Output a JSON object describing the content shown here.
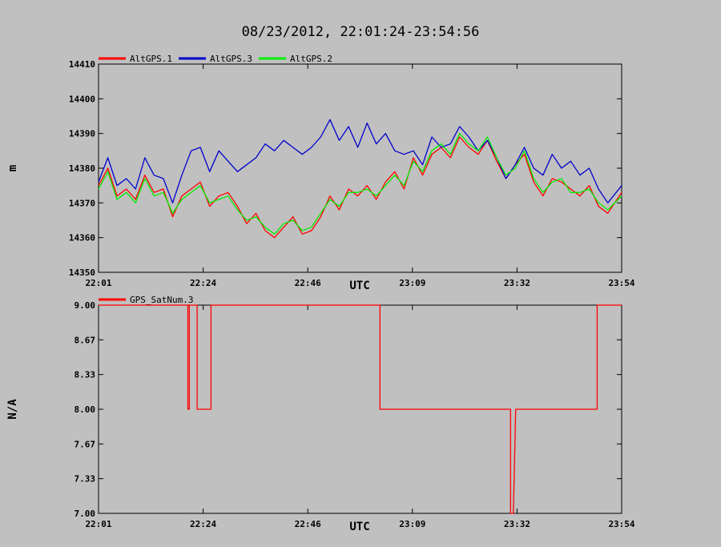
{
  "title": "08/23/2012, 22:01:24-23:54:56",
  "x_axis_label": "UTC",
  "chart_data": [
    {
      "type": "line",
      "ylabel": "m",
      "xlabel": "UTC",
      "ylim": [
        14350,
        14410
      ],
      "y_ticks": [
        "14350",
        "14360",
        "14370",
        "14380",
        "14390",
        "14400",
        "14410"
      ],
      "x_tick_labels": [
        "22:01",
        "22:24",
        "22:46",
        "23:09",
        "23:32",
        "23:54"
      ],
      "xlim_minutes": [
        0,
        113
      ],
      "legend_placement": "top-left",
      "series": [
        {
          "name": "AltGPS.1",
          "color": "#ff0000",
          "x_minutes": [
            0,
            2,
            4,
            6,
            8,
            10,
            12,
            14,
            16,
            18,
            20,
            22,
            24,
            26,
            28,
            30,
            32,
            34,
            36,
            38,
            40,
            42,
            44,
            46,
            48,
            50,
            52,
            54,
            56,
            58,
            60,
            62,
            64,
            66,
            68,
            70,
            72,
            74,
            76,
            78,
            80,
            82,
            84,
            86,
            88,
            90,
            92,
            94,
            96,
            98,
            100,
            102,
            104,
            106,
            108,
            110,
            113
          ],
          "values": [
            14375,
            14380,
            14372,
            14374,
            14371,
            14378,
            14373,
            14374,
            14366,
            14372,
            14374,
            14376,
            14369,
            14372,
            14373,
            14369,
            14364,
            14367,
            14362,
            14360,
            14363,
            14366,
            14361,
            14362,
            14366,
            14372,
            14368,
            14374,
            14372,
            14375,
            14371,
            14376,
            14379,
            14374,
            14383,
            14378,
            14384,
            14386,
            14383,
            14389,
            14386,
            14384,
            14388,
            14382,
            14377,
            14381,
            14384,
            14376,
            14372,
            14377,
            14376,
            14374,
            14372,
            14375,
            14369,
            14367,
            14373
          ]
        },
        {
          "name": "AltGPS.3",
          "color": "#0000cc",
          "x_minutes": [
            0,
            2,
            4,
            6,
            8,
            10,
            12,
            14,
            16,
            18,
            20,
            22,
            24,
            26,
            28,
            30,
            32,
            34,
            36,
            38,
            40,
            42,
            44,
            46,
            48,
            50,
            52,
            54,
            56,
            58,
            60,
            62,
            64,
            66,
            68,
            70,
            72,
            74,
            76,
            78,
            80,
            82,
            84,
            86,
            88,
            90,
            92,
            94,
            96,
            98,
            100,
            102,
            104,
            106,
            108,
            110,
            113
          ],
          "values": [
            14376,
            14383,
            14375,
            14377,
            14374,
            14383,
            14378,
            14377,
            14370,
            14378,
            14385,
            14386,
            14379,
            14385,
            14382,
            14379,
            14381,
            14383,
            14387,
            14385,
            14388,
            14386,
            14384,
            14386,
            14389,
            14394,
            14388,
            14392,
            14386,
            14393,
            14387,
            14390,
            14385,
            14384,
            14385,
            14381,
            14389,
            14386,
            14387,
            14392,
            14389,
            14385,
            14388,
            14383,
            14377,
            14381,
            14386,
            14380,
            14378,
            14384,
            14380,
            14382,
            14378,
            14380,
            14374,
            14370,
            14375
          ]
        },
        {
          "name": "AltGPS.2",
          "color": "#00ee00",
          "x_minutes": [
            0,
            2,
            4,
            6,
            8,
            10,
            12,
            14,
            16,
            18,
            20,
            22,
            24,
            26,
            28,
            30,
            32,
            34,
            36,
            38,
            40,
            42,
            44,
            46,
            48,
            50,
            52,
            54,
            56,
            58,
            60,
            62,
            64,
            66,
            68,
            70,
            72,
            74,
            76,
            78,
            80,
            82,
            84,
            86,
            88,
            90,
            92,
            94,
            96,
            98,
            100,
            102,
            104,
            106,
            108,
            110,
            113
          ],
          "values": [
            14374,
            14379,
            14371,
            14373,
            14370,
            14377,
            14372,
            14373,
            14367,
            14371,
            14373,
            14375,
            14370,
            14371,
            14372,
            14368,
            14365,
            14366,
            14363,
            14361,
            14364,
            14365,
            14362,
            14363,
            14367,
            14371,
            14369,
            14373,
            14373,
            14374,
            14372,
            14375,
            14378,
            14375,
            14382,
            14379,
            14385,
            14387,
            14384,
            14390,
            14387,
            14385,
            14389,
            14383,
            14378,
            14380,
            14385,
            14377,
            14373,
            14376,
            14377,
            14373,
            14373,
            14374,
            14370,
            14368,
            14372
          ]
        }
      ]
    },
    {
      "type": "line",
      "ylabel": "N/A",
      "xlabel": "UTC",
      "ylim": [
        7.0,
        9.0
      ],
      "y_ticks": [
        "7.00",
        "7.33",
        "7.67",
        "8.00",
        "8.33",
        "8.67",
        "9.00"
      ],
      "x_tick_labels": [
        "22:01",
        "22:24",
        "22:46",
        "23:09",
        "23:32",
        "23:54"
      ],
      "xlim_minutes": [
        0,
        113
      ],
      "legend_placement": "top-left",
      "series": [
        {
          "name": "GPS_SatNum.3",
          "color": "#ff0000",
          "x_minutes": [
            0,
            19.3,
            19.3,
            19.6,
            19.6,
            21.3,
            21.3,
            21.5,
            21.5,
            24.3,
            24.3,
            60.8,
            60.8,
            89.0,
            89.0,
            89.6,
            89.6,
            90.1,
            90.1,
            107.7,
            107.7,
            113
          ],
          "values": [
            9,
            9,
            8,
            8,
            9,
            9,
            8,
            8,
            8,
            8,
            9,
            9,
            8,
            8,
            7,
            7,
            7,
            8,
            8,
            8,
            9,
            9
          ]
        }
      ]
    }
  ]
}
